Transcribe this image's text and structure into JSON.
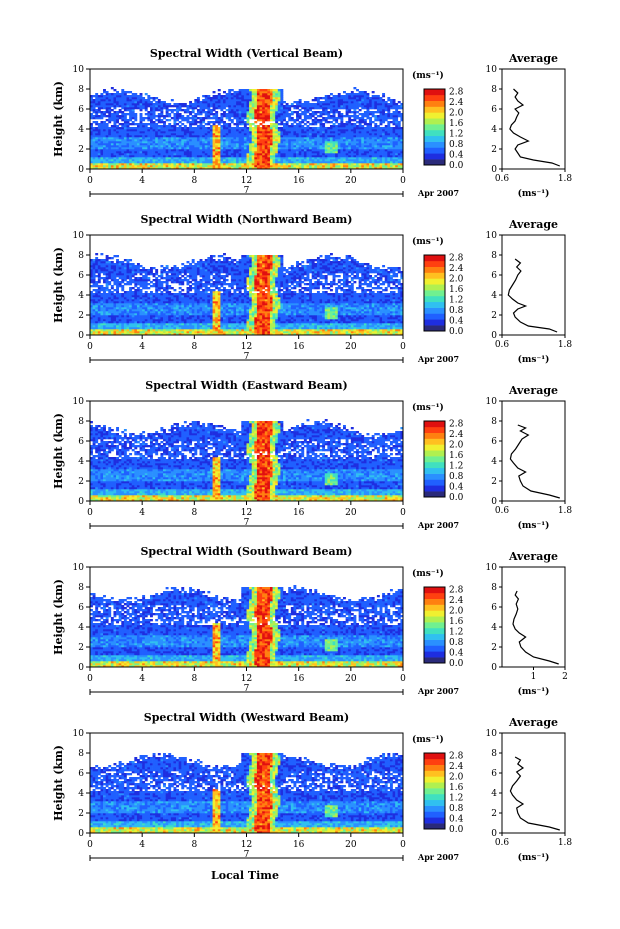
{
  "figure": {
    "xlabel": "Local Time",
    "date_label": "Apr 2007",
    "day_label": "7",
    "ylabel": "Height (km)",
    "colorbar_unit": "(ms⁻¹)",
    "average_title": "Average",
    "average_unit": "(ms⁻¹)"
  },
  "colorbar": {
    "ticks": [
      "0.0",
      "0.4",
      "0.8",
      "1.2",
      "1.6",
      "2.0",
      "2.4",
      "2.8"
    ],
    "colors": [
      "#2a2a7a",
      "#1e2ee0",
      "#2060ff",
      "#2a90ff",
      "#30c0f0",
      "#40e0c0",
      "#70f090",
      "#b0f050",
      "#f0f030",
      "#ffc020",
      "#ff8010",
      "#ff4010",
      "#e01010"
    ]
  },
  "chart_data": [
    {
      "type": "heatmap",
      "title": "Spectral Width (Vertical Beam)",
      "xlabel": "Local Time",
      "ylabel": "Height (km)",
      "xlim": [
        0,
        24
      ],
      "ylim": [
        0,
        10
      ],
      "x_ticks": [
        "0",
        "4",
        "8",
        "12",
        "16",
        "20",
        "0"
      ],
      "y_ticks": [
        "0",
        "2",
        "4",
        "6",
        "8",
        "10"
      ],
      "average": {
        "xlim": [
          0.6,
          1.8
        ],
        "ylim": [
          0,
          10
        ],
        "x_ticks": [
          "0.6",
          "1.8"
        ],
        "y_ticks": [
          "0",
          "2",
          "4",
          "6",
          "8",
          "10"
        ],
        "profile": [
          [
            1.7,
            0.3
          ],
          [
            1.55,
            0.6
          ],
          [
            1.2,
            0.9
          ],
          [
            0.95,
            1.2
          ],
          [
            0.9,
            1.6
          ],
          [
            0.85,
            2.0
          ],
          [
            0.9,
            2.4
          ],
          [
            1.1,
            2.8
          ],
          [
            0.95,
            3.2
          ],
          [
            0.82,
            3.6
          ],
          [
            0.75,
            4.0
          ],
          [
            0.78,
            4.4
          ],
          [
            0.85,
            4.8
          ],
          [
            0.88,
            5.2
          ],
          [
            0.92,
            5.6
          ],
          [
            0.85,
            6.0
          ],
          [
            1.0,
            6.4
          ],
          [
            0.9,
            6.8
          ],
          [
            0.85,
            7.2
          ],
          [
            0.9,
            7.6
          ],
          [
            0.82,
            8.0
          ]
        ]
      }
    },
    {
      "type": "heatmap",
      "title": "Spectral Width (Northward Beam)",
      "xlabel": "Local Time",
      "ylabel": "Height (km)",
      "xlim": [
        0,
        24
      ],
      "ylim": [
        0,
        10
      ],
      "x_ticks": [
        "0",
        "4",
        "8",
        "12",
        "16",
        "20",
        "0"
      ],
      "y_ticks": [
        "0",
        "2",
        "4",
        "6",
        "8",
        "10"
      ],
      "average": {
        "xlim": [
          0.6,
          1.8
        ],
        "ylim": [
          0,
          10
        ],
        "x_ticks": [
          "0.6",
          "1.8"
        ],
        "y_ticks": [
          "0",
          "2",
          "4",
          "6",
          "8",
          "10"
        ],
        "profile": [
          [
            1.65,
            0.3
          ],
          [
            1.5,
            0.6
          ],
          [
            1.1,
            0.9
          ],
          [
            0.95,
            1.3
          ],
          [
            0.85,
            1.8
          ],
          [
            0.82,
            2.2
          ],
          [
            0.9,
            2.6
          ],
          [
            1.05,
            2.9
          ],
          [
            0.9,
            3.2
          ],
          [
            0.8,
            3.6
          ],
          [
            0.72,
            4.0
          ],
          [
            0.74,
            4.5
          ],
          [
            0.8,
            5.0
          ],
          [
            0.86,
            5.5
          ],
          [
            0.9,
            6.0
          ],
          [
            0.96,
            6.4
          ],
          [
            0.88,
            6.8
          ],
          [
            0.95,
            7.2
          ],
          [
            0.85,
            7.6
          ]
        ]
      }
    },
    {
      "type": "heatmap",
      "title": "Spectral Width (Eastward Beam)",
      "xlabel": "Local Time",
      "ylabel": "Height (km)",
      "xlim": [
        0,
        24
      ],
      "ylim": [
        0,
        10
      ],
      "x_ticks": [
        "0",
        "4",
        "8",
        "12",
        "16",
        "20",
        "0"
      ],
      "y_ticks": [
        "0",
        "2",
        "4",
        "6",
        "8",
        "10"
      ],
      "average": {
        "xlim": [
          0.6,
          1.8
        ],
        "ylim": [
          0,
          10
        ],
        "x_ticks": [
          "0.6",
          "1.8"
        ],
        "y_ticks": [
          "0",
          "2",
          "4",
          "6",
          "8",
          "10"
        ],
        "profile": [
          [
            1.7,
            0.3
          ],
          [
            1.5,
            0.6
          ],
          [
            1.15,
            1.0
          ],
          [
            1.0,
            1.5
          ],
          [
            0.95,
            2.0
          ],
          [
            0.92,
            2.5
          ],
          [
            1.05,
            2.9
          ],
          [
            0.9,
            3.3
          ],
          [
            0.82,
            3.8
          ],
          [
            0.76,
            4.2
          ],
          [
            0.78,
            4.7
          ],
          [
            0.86,
            5.2
          ],
          [
            0.92,
            5.7
          ],
          [
            0.98,
            6.2
          ],
          [
            1.1,
            6.6
          ],
          [
            0.95,
            7.0
          ],
          [
            1.05,
            7.3
          ],
          [
            0.9,
            7.6
          ]
        ]
      }
    },
    {
      "type": "heatmap",
      "title": "Spectral Width (Southward Beam)",
      "xlabel": "Local Time",
      "ylabel": "Height (km)",
      "xlim": [
        0,
        24
      ],
      "ylim": [
        0,
        10
      ],
      "x_ticks": [
        "0",
        "4",
        "8",
        "12",
        "16",
        "20",
        "0"
      ],
      "y_ticks": [
        "0",
        "2",
        "4",
        "6",
        "8",
        "10"
      ],
      "average": {
        "xlim": [
          0,
          2
        ],
        "ylim": [
          0,
          10
        ],
        "x_ticks": [
          "1",
          "2"
        ],
        "y_ticks": [
          "0",
          "2",
          "4",
          "6",
          "8",
          "10"
        ],
        "profile": [
          [
            1.8,
            0.3
          ],
          [
            1.5,
            0.6
          ],
          [
            1.0,
            1.0
          ],
          [
            0.75,
            1.5
          ],
          [
            0.6,
            2.0
          ],
          [
            0.55,
            2.5
          ],
          [
            0.75,
            3.0
          ],
          [
            0.55,
            3.4
          ],
          [
            0.42,
            3.8
          ],
          [
            0.35,
            4.3
          ],
          [
            0.38,
            4.8
          ],
          [
            0.45,
            5.3
          ],
          [
            0.5,
            5.8
          ],
          [
            0.45,
            6.3
          ],
          [
            0.52,
            6.8
          ],
          [
            0.42,
            7.2
          ],
          [
            0.48,
            7.6
          ]
        ]
      }
    },
    {
      "type": "heatmap",
      "title": "Spectral Width (Westward Beam)",
      "xlabel": "Local Time",
      "ylabel": "Height (km)",
      "xlim": [
        0,
        24
      ],
      "ylim": [
        0,
        10
      ],
      "x_ticks": [
        "0",
        "4",
        "8",
        "12",
        "16",
        "20",
        "0"
      ],
      "y_ticks": [
        "0",
        "2",
        "4",
        "6",
        "8",
        "10"
      ],
      "average": {
        "xlim": [
          0.6,
          1.8
        ],
        "ylim": [
          0,
          10
        ],
        "x_ticks": [
          "0.6",
          "1.8"
        ],
        "y_ticks": [
          "0",
          "2",
          "4",
          "6",
          "8",
          "10"
        ],
        "profile": [
          [
            1.7,
            0.3
          ],
          [
            1.5,
            0.6
          ],
          [
            1.1,
            1.0
          ],
          [
            0.95,
            1.5
          ],
          [
            0.9,
            2.0
          ],
          [
            0.88,
            2.5
          ],
          [
            1.0,
            2.9
          ],
          [
            0.88,
            3.3
          ],
          [
            0.8,
            3.8
          ],
          [
            0.76,
            4.2
          ],
          [
            0.8,
            4.7
          ],
          [
            0.88,
            5.2
          ],
          [
            0.95,
            5.7
          ],
          [
            0.88,
            6.1
          ],
          [
            1.0,
            6.5
          ],
          [
            0.9,
            6.9
          ],
          [
            0.95,
            7.3
          ],
          [
            0.85,
            7.6
          ]
        ]
      }
    }
  ]
}
